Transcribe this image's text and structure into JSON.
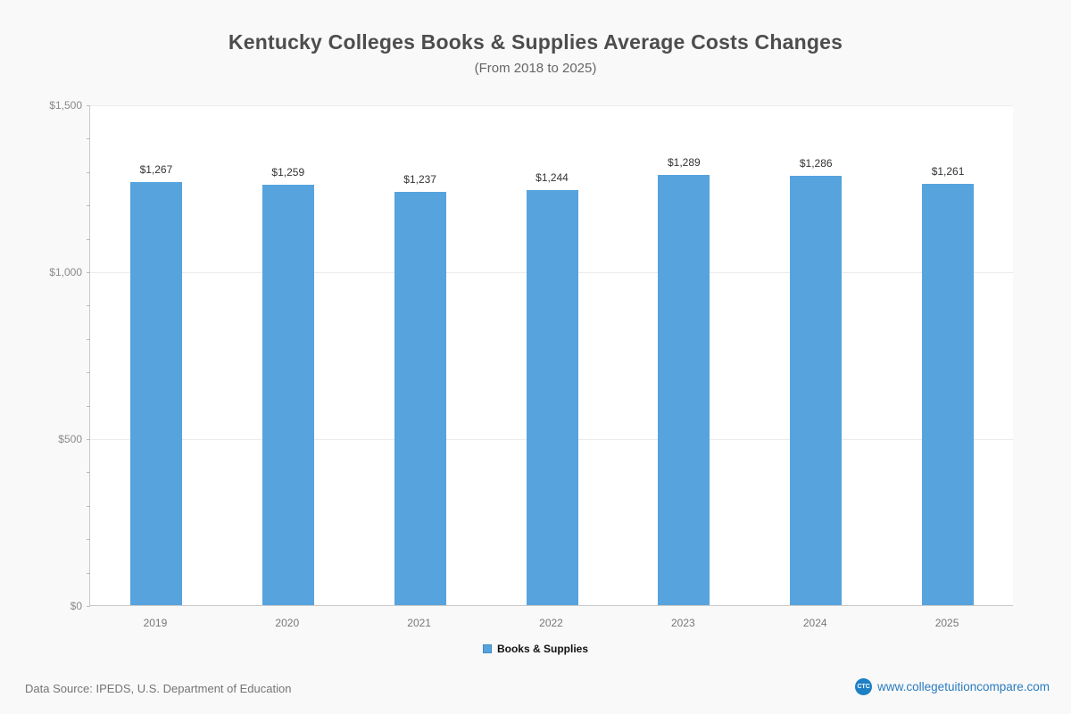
{
  "title": "Kentucky Colleges  Books & Supplies Average Costs Changes",
  "subtitle": "(From 2018 to 2025)",
  "chart_data": {
    "type": "bar",
    "categories": [
      "2019",
      "2020",
      "2021",
      "2022",
      "2023",
      "2024",
      "2025"
    ],
    "values": [
      1267,
      1259,
      1237,
      1244,
      1289,
      1286,
      1261
    ],
    "value_labels": [
      "$1,267",
      "$1,259",
      "$1,237",
      "$1,244",
      "$1,289",
      "$1,286",
      "$1,261"
    ],
    "series_name": "Books & Supplies",
    "title": "Kentucky Colleges  Books & Supplies Average Costs Changes",
    "subtitle": "(From 2018 to 2025)",
    "xlabel": "",
    "ylabel": "",
    "ylim": [
      0,
      1500
    ],
    "yticks": [
      {
        "value": 0,
        "label": "$0"
      },
      {
        "value": 500,
        "label": "$500"
      },
      {
        "value": 1000,
        "label": "$1,000"
      },
      {
        "value": 1500,
        "label": "$1,500"
      }
    ],
    "minor_tick_step": 100,
    "grid": true,
    "bar_color": "#56a3de",
    "legend_position": "bottom"
  },
  "legend": {
    "label": "Books & Supplies",
    "color": "#56a3de"
  },
  "footer": {
    "source": "Data Source: IPEDS, U.S. Department of Education",
    "logo_text": "CTC",
    "site": "www.collegetuitioncompare.com"
  }
}
